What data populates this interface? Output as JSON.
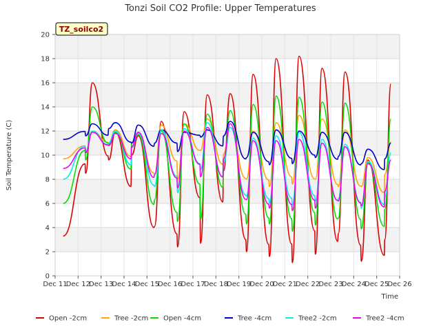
{
  "chart_data": {
    "type": "line",
    "title": "Tonzi Soil CO2 Profile: Upper Temperatures",
    "xlabel": "Time",
    "ylabel": "Soil Temperature (C)",
    "site_label": "TZ_soilco2",
    "xlim": [
      11,
      26
    ],
    "ylim": [
      0,
      20
    ],
    "x_ticks": [
      11,
      12,
      13,
      14,
      15,
      16,
      17,
      18,
      19,
      20,
      21,
      22,
      23,
      24,
      25,
      26
    ],
    "x_tick_labels": [
      "Dec 11",
      "Dec 12",
      "Dec 13",
      "Dec 14",
      "Dec 15",
      "Dec 16",
      "Dec 17",
      "Dec 18",
      "Dec 19",
      "Dec 20",
      "Dec 21",
      "Dec 22",
      "Dec 23",
      "Dec 24",
      "Dec 25",
      "Dec 26"
    ],
    "y_ticks": [
      0,
      2,
      4,
      6,
      8,
      10,
      12,
      14,
      16,
      18,
      20
    ],
    "y_tick_labels": [
      "0",
      "2",
      "4",
      "6",
      "8",
      "10",
      "12",
      "14",
      "16",
      "18",
      "20"
    ],
    "grid": true,
    "legend_position": "bottom",
    "days": [
      11.35,
      12,
      13,
      14,
      15,
      16,
      17,
      18,
      19,
      20,
      21,
      22,
      23,
      24,
      25,
      25.35
    ],
    "series": [
      {
        "name": "Open -2cm",
        "color": "#dd0000",
        "min": [
          3.3,
          8.5,
          9.6,
          10.0,
          4.1,
          2.4,
          2.7,
          8.7,
          2.0,
          1.6,
          1.1,
          1.8,
          3.5,
          1.2,
          1.7,
          3.0
        ],
        "max": [
          3.3,
          16.0,
          11.9,
          11.6,
          12.8,
          13.6,
          15.0,
          15.1,
          16.7,
          18.0,
          18.2,
          17.2,
          16.9,
          9.6,
          15.9,
          5.5
        ]
      },
      {
        "name": "Tree -2cm",
        "color": "#ffa500",
        "min": [
          9.7,
          10.3,
          11.0,
          11.0,
          8.4,
          8.0,
          10.4,
          10.1,
          8.0,
          7.4,
          7.6,
          8.0,
          7.4,
          7.4,
          6.9,
          8.4
        ],
        "max": [
          9.7,
          12.0,
          12.1,
          11.8,
          12.5,
          12.6,
          13.0,
          12.3,
          12.0,
          12.7,
          13.3,
          13.0,
          12.1,
          9.8,
          11.1,
          8.4
        ]
      },
      {
        "name": "Open -4cm",
        "color": "#00dd00",
        "min": [
          6.0,
          9.6,
          10.9,
          11.0,
          6.3,
          4.5,
          4.7,
          9.4,
          4.3,
          4.3,
          3.7,
          4.2,
          4.8,
          3.9,
          4.1,
          5.5
        ],
        "max": [
          6.0,
          14.0,
          11.9,
          11.7,
          12.0,
          12.6,
          13.4,
          13.7,
          14.2,
          14.9,
          14.8,
          14.4,
          14.3,
          9.4,
          13.0,
          5.5
        ]
      },
      {
        "name": "Tree -4cm",
        "color": "#0000cc",
        "min": [
          11.3,
          11.6,
          12.2,
          11.0,
          11.0,
          10.3,
          11.5,
          11.6,
          9.8,
          9.2,
          9.3,
          9.8,
          9.9,
          9.3,
          8.8,
          9.7
        ],
        "max": [
          11.3,
          12.6,
          12.7,
          12.5,
          12.1,
          11.9,
          12.1,
          12.8,
          11.9,
          12.1,
          12.0,
          11.9,
          11.9,
          10.5,
          11.0,
          9.7
        ]
      },
      {
        "name": "Tree2 -2cm",
        "color": "#00eeee",
        "min": [
          8.0,
          10.3,
          11.0,
          10.6,
          7.4,
          6.9,
          8.8,
          9.3,
          6.6,
          6.0,
          5.9,
          6.2,
          6.4,
          5.6,
          5.9,
          6.5
        ],
        "max": [
          8.0,
          12.0,
          12.0,
          11.8,
          12.1,
          12.2,
          12.7,
          12.3,
          11.4,
          11.6,
          11.9,
          11.3,
          10.9,
          9.5,
          10.2,
          6.5
        ]
      },
      {
        "name": "Tree2 -4cm",
        "color": "#ee00ee",
        "min": [
          8.9,
          10.2,
          10.8,
          10.7,
          8.4,
          7.3,
          8.2,
          9.7,
          6.3,
          5.6,
          5.4,
          5.6,
          6.2,
          5.8,
          5.7,
          7.0
        ],
        "max": [
          8.9,
          11.9,
          11.8,
          11.9,
          11.8,
          12.0,
          12.3,
          12.6,
          11.2,
          11.2,
          11.3,
          11.0,
          10.7,
          9.3,
          9.6,
          7.0
        ]
      }
    ]
  }
}
